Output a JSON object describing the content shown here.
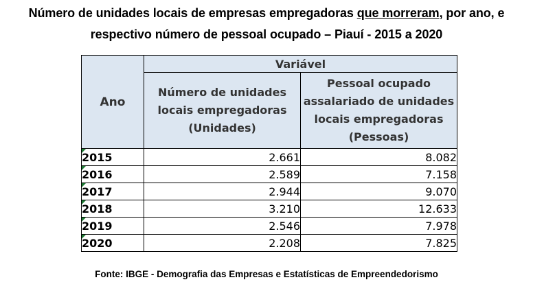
{
  "title": {
    "line1_pre": "Número de unidades locais de empresas empregadoras ",
    "line1_underlined": "que morreram",
    "line1_post": ", por ano, e",
    "line2": "respectivo número de pessoal ocupado – Piauí - 2015 a 2020"
  },
  "table": {
    "col_year_header": "Ano",
    "group_header": "Variável",
    "col1_header": "Número de unidades locais empregadoras (Unidades)",
    "col2_header": "Pessoal ocupado assalariado de unidades locais empregadoras (Pessoas)",
    "rows": [
      {
        "year": "2015",
        "units": "2.661",
        "people": "8.082"
      },
      {
        "year": "2016",
        "units": "2.589",
        "people": "7.158"
      },
      {
        "year": "2017",
        "units": "2.944",
        "people": "9.070"
      },
      {
        "year": "2018",
        "units": "3.210",
        "people": "12.633"
      },
      {
        "year": "2019",
        "units": "2.546",
        "people": "7.978"
      },
      {
        "year": "2020",
        "units": "2.208",
        "people": "7.825"
      }
    ]
  },
  "source": "Fonte: IBGE - Demografia das Empresas e Estatísticas de Empreendedorismo",
  "colors": {
    "header_fill": "#dce6f1",
    "cell_marker": "#1e7b34"
  }
}
